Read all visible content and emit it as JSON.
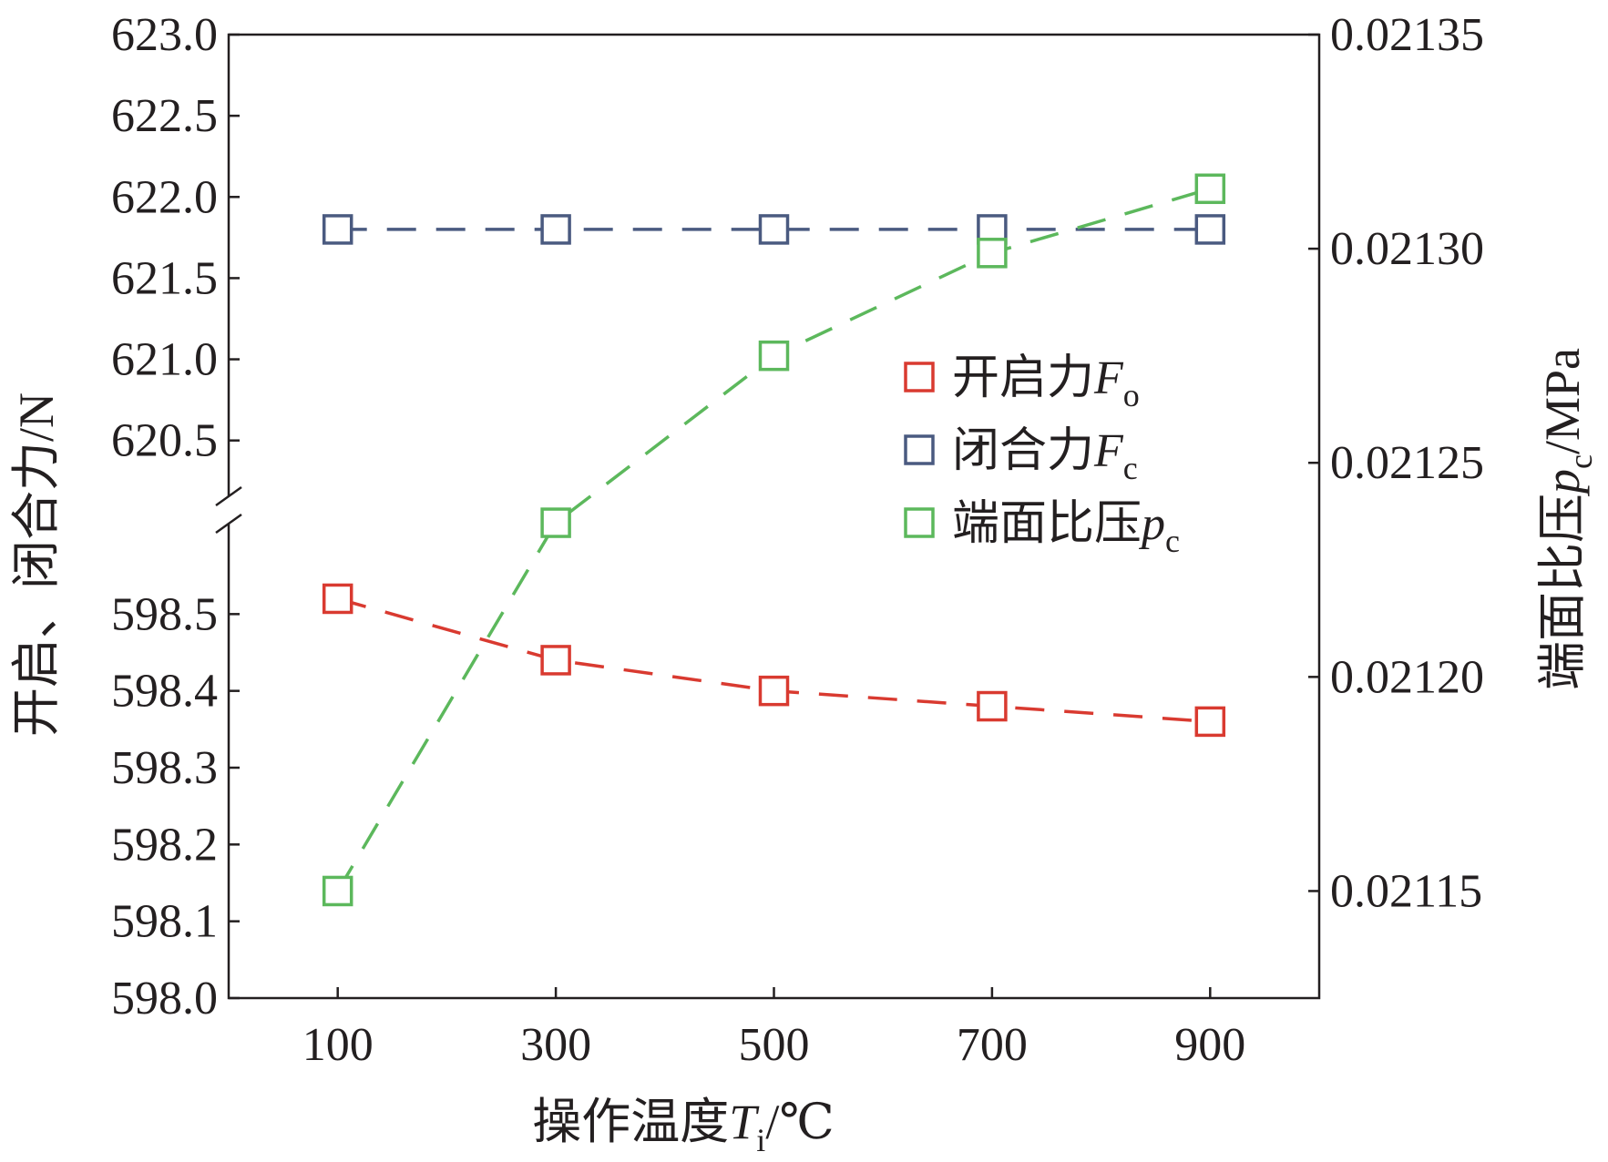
{
  "chart_data": {
    "type": "line",
    "x": [
      100,
      300,
      500,
      700,
      900
    ],
    "x_ticks": [
      "100",
      "300",
      "500",
      "700",
      "900"
    ],
    "x_range": [
      0,
      1000
    ],
    "xlabel": {
      "main": "操作温度",
      "var": "T",
      "sub": "i",
      "unit": "/℃"
    },
    "ylabel_left": "开启、闭合力/N",
    "ylabel_right": {
      "main": "端面比压",
      "var": "p",
      "sub": "c",
      "unit": "/MPa"
    },
    "left_axis": {
      "broken": true,
      "upper_range": [
        620.1,
        623.0
      ],
      "upper_ticks": [
        623.0,
        622.5,
        622.0,
        621.5,
        621.0,
        620.5
      ],
      "upper_tick_labels": [
        "623.0",
        "622.5",
        "622.0",
        "621.5",
        "621.0",
        "620.5"
      ],
      "lower_range": [
        598.0,
        598.6
      ],
      "lower_ticks": [
        598.5,
        598.4,
        598.3,
        598.2,
        598.1,
        598.0
      ],
      "lower_tick_labels": [
        "598.5",
        "598.4",
        "598.3",
        "598.2",
        "598.1",
        "598.0"
      ]
    },
    "right_axis": {
      "range": [
        0.021125,
        0.02135
      ],
      "ticks": [
        0.02135,
        0.0213,
        0.02125,
        0.0212,
        0.02115
      ],
      "tick_labels": [
        "0.02135",
        "0.02130",
        "0.02125",
        "0.02120",
        "0.02115"
      ]
    },
    "series": [
      {
        "name": "开启力",
        "var": "F",
        "sub": "o",
        "axis": "left",
        "color": "#d93a30",
        "values": [
          598.52,
          598.44,
          598.4,
          598.38,
          598.36
        ]
      },
      {
        "name": "闭合力",
        "var": "F",
        "sub": "c",
        "axis": "left",
        "color": "#4a5a80",
        "values": [
          621.8,
          621.8,
          621.8,
          621.8,
          621.8
        ]
      },
      {
        "name": "端面比压",
        "var": "p",
        "sub": "c",
        "axis": "right",
        "color": "#5cb85c",
        "values": [
          0.02115,
          0.021236,
          0.021275,
          0.021299,
          0.021314
        ]
      }
    ],
    "legend_position": "center-right"
  }
}
